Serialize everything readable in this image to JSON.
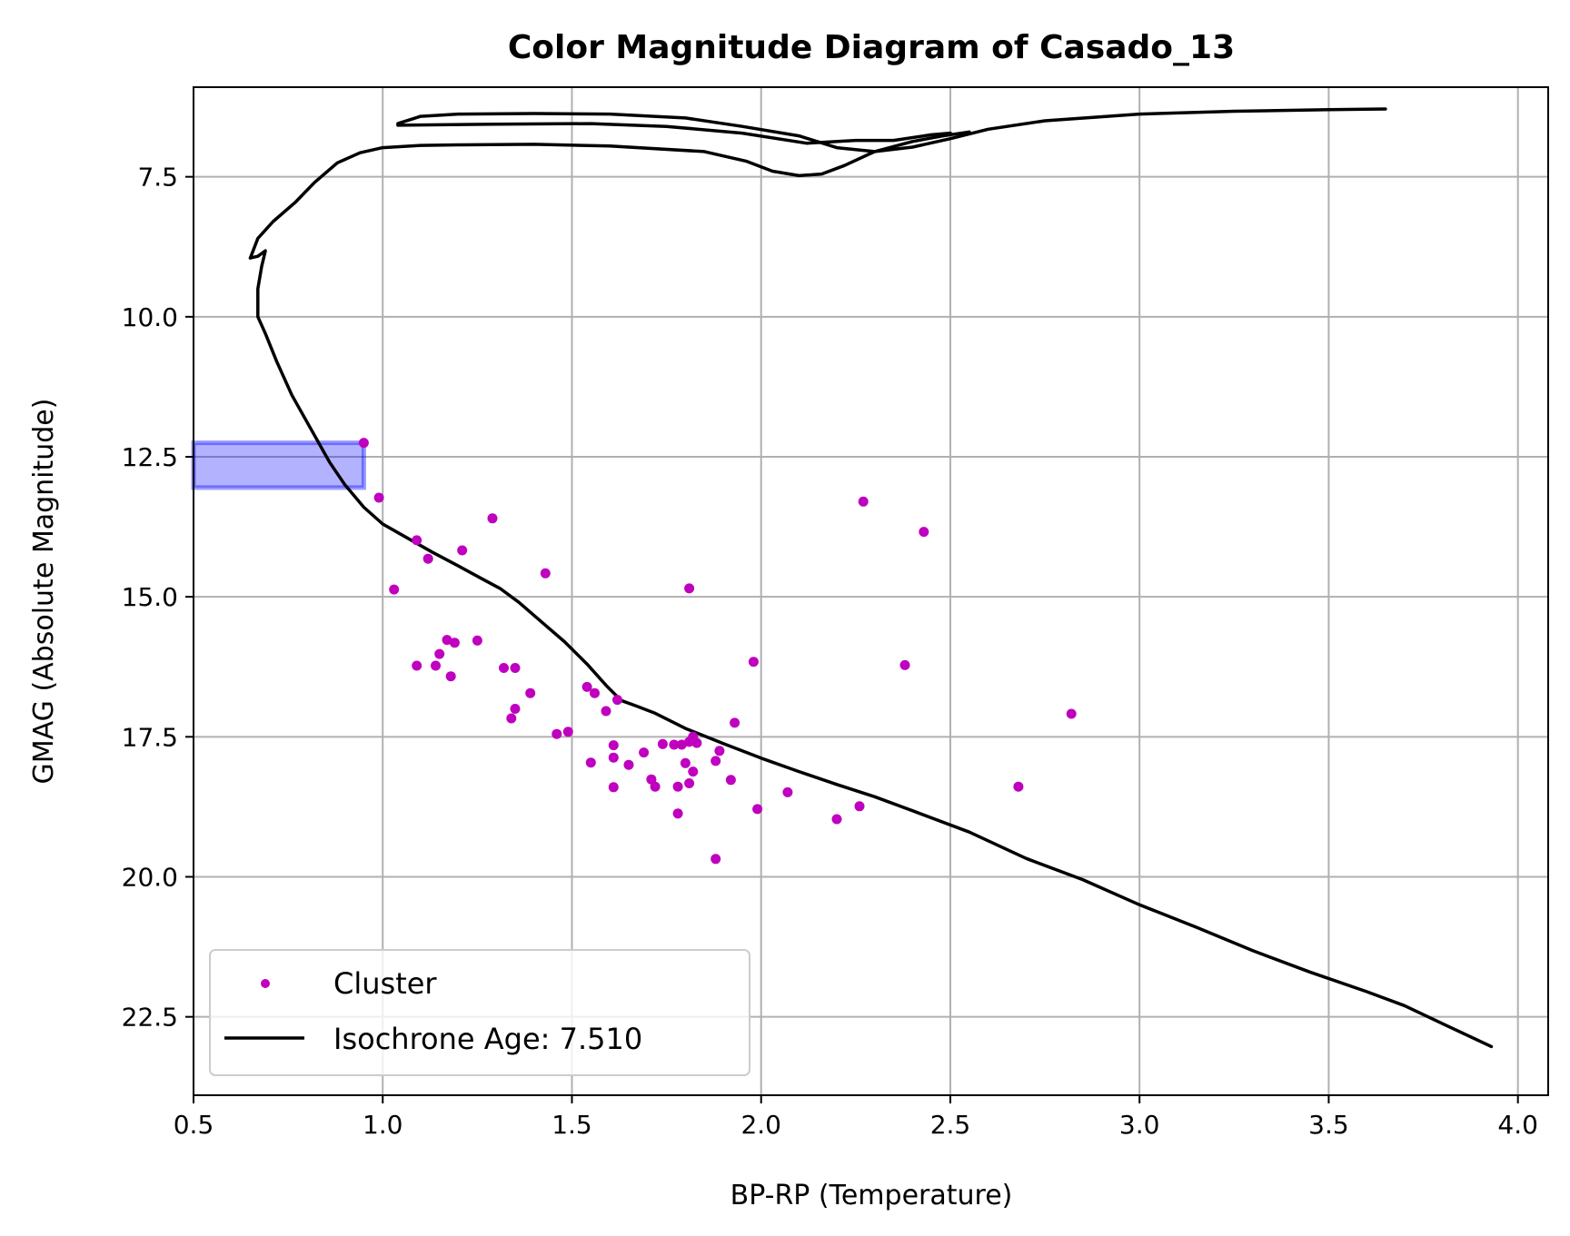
{
  "chart_data": {
    "type": "scatter",
    "title": "Color Magnitude Diagram of Casado_13",
    "xlabel": "BP-RP (Temperature)",
    "ylabel": "GMAG (Absolute Magnitude)",
    "xlim": [
      0.5,
      4.08
    ],
    "ylim": [
      5.9,
      23.9
    ],
    "y_inverted": true,
    "grid": true,
    "legend_position": "lower-left",
    "xticks": [
      "0.5",
      "1.0",
      "1.5",
      "2.0",
      "2.5",
      "3.0",
      "3.5",
      "4.0"
    ],
    "yticks": [
      "7.5",
      "10.0",
      "12.5",
      "15.0",
      "17.5",
      "20.0",
      "22.5"
    ],
    "xtick_values": [
      0.5,
      1.0,
      1.5,
      2.0,
      2.5,
      3.0,
      3.5,
      4.0
    ],
    "ytick_values": [
      7.5,
      10.0,
      12.5,
      15.0,
      17.5,
      20.0,
      22.5
    ],
    "highlight_box": {
      "x": [
        0.5,
        0.95
      ],
      "y": [
        12.25,
        13.05
      ],
      "color": "#0000ff"
    },
    "series": [
      {
        "name": "Cluster",
        "kind": "scatter",
        "color": "#bf00bf",
        "points": [
          [
            0.95,
            12.25
          ],
          [
            0.99,
            13.23
          ],
          [
            1.09,
            13.99
          ],
          [
            1.12,
            14.32
          ],
          [
            1.03,
            14.87
          ],
          [
            1.21,
            14.17
          ],
          [
            1.29,
            13.6
          ],
          [
            1.43,
            14.58
          ],
          [
            1.09,
            16.23
          ],
          [
            1.14,
            16.23
          ],
          [
            1.15,
            16.02
          ],
          [
            1.17,
            15.77
          ],
          [
            1.19,
            15.82
          ],
          [
            1.18,
            16.42
          ],
          [
            1.25,
            15.78
          ],
          [
            1.32,
            16.27
          ],
          [
            1.35,
            16.27
          ],
          [
            1.35,
            17.0
          ],
          [
            1.34,
            17.17
          ],
          [
            1.39,
            16.72
          ],
          [
            1.46,
            17.45
          ],
          [
            1.49,
            17.41
          ],
          [
            1.54,
            16.61
          ],
          [
            1.56,
            16.72
          ],
          [
            1.59,
            17.04
          ],
          [
            1.62,
            16.84
          ],
          [
            1.55,
            17.96
          ],
          [
            1.61,
            18.4
          ],
          [
            1.61,
            17.87
          ],
          [
            1.61,
            17.65
          ],
          [
            1.65,
            18.0
          ],
          [
            1.69,
            17.78
          ],
          [
            1.71,
            18.26
          ],
          [
            1.72,
            18.39
          ],
          [
            1.74,
            17.63
          ],
          [
            1.77,
            17.64
          ],
          [
            1.78,
            18.39
          ],
          [
            1.78,
            18.87
          ],
          [
            1.79,
            17.64
          ],
          [
            1.8,
            17.97
          ],
          [
            1.81,
            17.59
          ],
          [
            1.81,
            18.33
          ],
          [
            1.82,
            18.12
          ],
          [
            1.82,
            17.5
          ],
          [
            1.83,
            17.61
          ],
          [
            1.88,
            17.93
          ],
          [
            1.89,
            17.75
          ],
          [
            1.88,
            19.68
          ],
          [
            1.93,
            17.25
          ],
          [
            1.92,
            18.27
          ],
          [
            1.98,
            16.16
          ],
          [
            1.99,
            18.79
          ],
          [
            2.07,
            18.49
          ],
          [
            1.81,
            14.85
          ],
          [
            2.2,
            18.97
          ],
          [
            2.26,
            18.74
          ],
          [
            2.27,
            13.3
          ],
          [
            2.38,
            16.22
          ],
          [
            2.43,
            13.84
          ],
          [
            2.68,
            18.39
          ],
          [
            2.82,
            17.09
          ]
        ]
      },
      {
        "name": "Isochrone Age: 7.510",
        "kind": "line",
        "color": "#000000",
        "segments": [
          [
            [
              0.65,
              8.95
            ],
            [
              0.67,
              8.92
            ],
            [
              0.69,
              8.82
            ],
            [
              0.68,
              9.1
            ],
            [
              0.67,
              9.5
            ],
            [
              0.67,
              10.0
            ],
            [
              0.69,
              10.3
            ],
            [
              0.72,
              10.8
            ],
            [
              0.76,
              11.4
            ],
            [
              0.81,
              12.0
            ],
            [
              0.86,
              12.6
            ],
            [
              0.9,
              13.0
            ],
            [
              0.95,
              13.4
            ],
            [
              1.0,
              13.7
            ],
            [
              1.06,
              13.93
            ],
            [
              1.13,
              14.2
            ],
            [
              1.2,
              14.45
            ],
            [
              1.26,
              14.67
            ],
            [
              1.31,
              14.85
            ],
            [
              1.36,
              15.1
            ],
            [
              1.42,
              15.45
            ],
            [
              1.48,
              15.8
            ],
            [
              1.54,
              16.2
            ],
            [
              1.59,
              16.58
            ],
            [
              1.63,
              16.85
            ],
            [
              1.67,
              16.95
            ],
            [
              1.72,
              17.08
            ],
            [
              1.8,
              17.35
            ],
            [
              1.9,
              17.62
            ],
            [
              2.0,
              17.88
            ],
            [
              2.1,
              18.12
            ],
            [
              2.2,
              18.35
            ],
            [
              2.3,
              18.57
            ],
            [
              2.4,
              18.82
            ],
            [
              2.55,
              19.2
            ],
            [
              2.7,
              19.67
            ],
            [
              2.85,
              20.05
            ],
            [
              3.0,
              20.5
            ],
            [
              3.15,
              20.9
            ],
            [
              3.3,
              21.32
            ],
            [
              3.45,
              21.7
            ],
            [
              3.6,
              22.05
            ],
            [
              3.7,
              22.3
            ],
            [
              3.8,
              22.62
            ],
            [
              3.93,
              23.03
            ]
          ],
          [
            [
              0.65,
              8.95
            ],
            [
              0.67,
              8.6
            ],
            [
              0.71,
              8.3
            ],
            [
              0.77,
              7.95
            ],
            [
              0.82,
              7.6
            ],
            [
              0.88,
              7.25
            ],
            [
              0.94,
              7.07
            ],
            [
              1.0,
              6.98
            ],
            [
              1.1,
              6.94
            ],
            [
              1.2,
              6.93
            ],
            [
              1.4,
              6.92
            ],
            [
              1.6,
              6.95
            ],
            [
              1.85,
              7.05
            ],
            [
              1.96,
              7.22
            ],
            [
              2.03,
              7.4
            ],
            [
              2.1,
              7.48
            ],
            [
              2.16,
              7.45
            ],
            [
              2.22,
              7.3
            ],
            [
              2.3,
              7.05
            ],
            [
              2.4,
              6.87
            ],
            [
              2.48,
              6.77
            ],
            [
              2.55,
              6.7
            ]
          ],
          [
            [
              1.04,
              6.55
            ],
            [
              1.1,
              6.42
            ],
            [
              1.2,
              6.38
            ],
            [
              1.4,
              6.37
            ],
            [
              1.6,
              6.38
            ],
            [
              1.8,
              6.45
            ],
            [
              1.95,
              6.6
            ],
            [
              2.1,
              6.77
            ],
            [
              2.2,
              6.98
            ],
            [
              2.3,
              7.05
            ],
            [
              2.4,
              6.97
            ],
            [
              2.5,
              6.82
            ],
            [
              2.6,
              6.65
            ],
            [
              2.75,
              6.5
            ],
            [
              3.0,
              6.38
            ],
            [
              3.25,
              6.33
            ],
            [
              3.5,
              6.3
            ],
            [
              3.65,
              6.29
            ]
          ],
          [
            [
              1.04,
              6.58
            ],
            [
              1.3,
              6.56
            ],
            [
              1.55,
              6.55
            ],
            [
              1.75,
              6.6
            ],
            [
              1.95,
              6.72
            ],
            [
              2.12,
              6.9
            ],
            [
              2.25,
              6.85
            ],
            [
              2.35,
              6.85
            ],
            [
              2.45,
              6.75
            ],
            [
              2.5,
              6.72
            ]
          ]
        ]
      }
    ],
    "legend": [
      {
        "label": "Cluster",
        "marker": "dot",
        "color": "#bf00bf"
      },
      {
        "label": "Isochrone Age: 7.510",
        "marker": "line",
        "color": "#000000"
      }
    ]
  }
}
